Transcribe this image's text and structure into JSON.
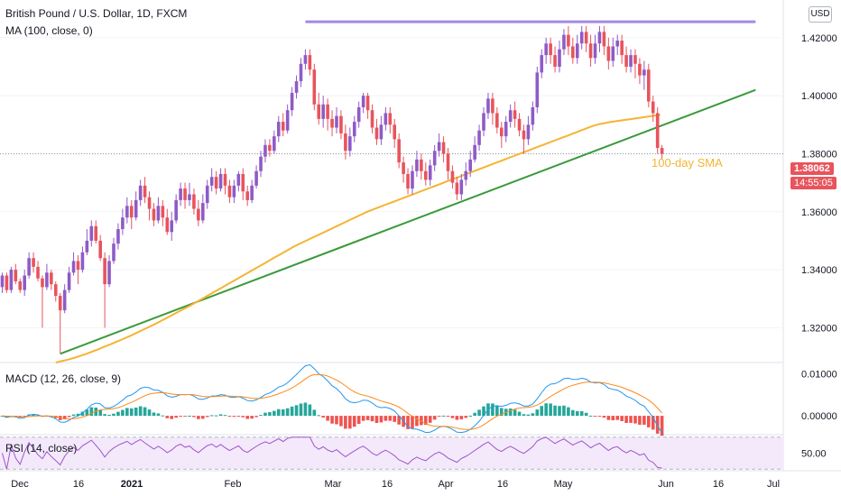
{
  "header": {
    "title": "British Pound / U.S. Dollar, 1D, FXCM",
    "ma_label": "MA (100, close, 0)",
    "currency": "USD"
  },
  "price_tag": {
    "value": "1.38062",
    "time": "14:55:05"
  },
  "annotation": "100-day SMA",
  "macd_label": "MACD (12, 26, close, 9)",
  "rsi_label": "RSI (14, close)",
  "colors": {
    "up": "#8e5bc7",
    "down": "#e8545c",
    "ma": "#f5b433",
    "trend": "#3a9a3a",
    "resistance": "#a48ae0",
    "macd": "#2196f3",
    "signal": "#ff8a1a",
    "hist_pos": "#26a69a",
    "hist_neg": "#ef5350",
    "rsi": "#a154c9"
  },
  "chart_data": [
    {
      "type": "candlestick",
      "name": "main",
      "y_ticks": [
        "1.42000",
        "1.40000",
        "1.38000",
        "1.36000",
        "1.34000",
        "1.32000"
      ],
      "y_tick_values": [
        1.42,
        1.4,
        1.38,
        1.36,
        1.34,
        1.32
      ],
      "ylim": [
        1.308,
        1.433
      ],
      "x_tick_labels": [
        "Dec",
        "16",
        "2021",
        "Feb",
        "Mar",
        "16",
        "Apr",
        "16",
        "May",
        "Jun",
        "16",
        "Jul"
      ],
      "candles": [
        [
          1.334,
          1.338,
          1.332,
          1.339
        ],
        [
          1.338,
          1.333,
          1.332,
          1.339
        ],
        [
          1.333,
          1.34,
          1.332,
          1.341
        ],
        [
          1.34,
          1.336,
          1.335,
          1.342
        ],
        [
          1.336,
          1.333,
          1.332,
          1.337
        ],
        [
          1.333,
          1.338,
          1.331,
          1.34
        ],
        [
          1.338,
          1.344,
          1.337,
          1.346
        ],
        [
          1.344,
          1.341,
          1.339,
          1.346
        ],
        [
          1.341,
          1.337,
          1.336,
          1.343
        ],
        [
          1.337,
          1.334,
          1.32,
          1.338
        ],
        [
          1.334,
          1.339,
          1.333,
          1.342
        ],
        [
          1.339,
          1.335,
          1.333,
          1.34
        ],
        [
          1.335,
          1.331,
          1.329,
          1.336
        ],
        [
          1.331,
          1.326,
          1.311,
          1.332
        ],
        [
          1.326,
          1.333,
          1.325,
          1.335
        ],
        [
          1.333,
          1.339,
          1.332,
          1.341
        ],
        [
          1.339,
          1.343,
          1.338,
          1.346
        ],
        [
          1.343,
          1.34,
          1.335,
          1.345
        ],
        [
          1.34,
          1.346,
          1.339,
          1.348
        ],
        [
          1.346,
          1.35,
          1.345,
          1.354
        ],
        [
          1.35,
          1.355,
          1.348,
          1.357
        ],
        [
          1.355,
          1.35,
          1.349,
          1.357
        ],
        [
          1.35,
          1.344,
          1.343,
          1.352
        ],
        [
          1.344,
          1.335,
          1.32,
          1.346
        ],
        [
          1.335,
          1.343,
          1.334,
          1.345
        ],
        [
          1.343,
          1.349,
          1.342,
          1.351
        ],
        [
          1.349,
          1.354,
          1.347,
          1.356
        ],
        [
          1.354,
          1.358,
          1.352,
          1.361
        ],
        [
          1.358,
          1.362,
          1.356,
          1.365
        ],
        [
          1.362,
          1.358,
          1.354,
          1.364
        ],
        [
          1.358,
          1.364,
          1.357,
          1.367
        ],
        [
          1.364,
          1.369,
          1.362,
          1.371
        ],
        [
          1.369,
          1.365,
          1.363,
          1.372
        ],
        [
          1.365,
          1.361,
          1.357,
          1.367
        ],
        [
          1.361,
          1.357,
          1.355,
          1.363
        ],
        [
          1.357,
          1.362,
          1.356,
          1.365
        ],
        [
          1.362,
          1.358,
          1.355,
          1.364
        ],
        [
          1.358,
          1.353,
          1.352,
          1.361
        ],
        [
          1.353,
          1.357,
          1.35,
          1.36
        ],
        [
          1.357,
          1.364,
          1.356,
          1.366
        ],
        [
          1.364,
          1.368,
          1.362,
          1.37
        ],
        [
          1.368,
          1.364,
          1.361,
          1.37
        ],
        [
          1.364,
          1.366,
          1.362,
          1.37
        ],
        [
          1.366,
          1.361,
          1.359,
          1.368
        ],
        [
          1.361,
          1.357,
          1.355,
          1.364
        ],
        [
          1.357,
          1.363,
          1.356,
          1.366
        ],
        [
          1.363,
          1.369,
          1.361,
          1.371
        ],
        [
          1.369,
          1.372,
          1.367,
          1.375
        ],
        [
          1.372,
          1.368,
          1.366,
          1.374
        ],
        [
          1.368,
          1.373,
          1.367,
          1.375
        ],
        [
          1.373,
          1.369,
          1.366,
          1.375
        ],
        [
          1.369,
          1.365,
          1.363,
          1.371
        ],
        [
          1.365,
          1.369,
          1.363,
          1.371
        ],
        [
          1.369,
          1.373,
          1.367,
          1.374
        ],
        [
          1.373,
          1.367,
          1.364,
          1.375
        ],
        [
          1.367,
          1.364,
          1.362,
          1.369
        ],
        [
          1.364,
          1.369,
          1.363,
          1.371
        ],
        [
          1.369,
          1.374,
          1.368,
          1.376
        ],
        [
          1.374,
          1.379,
          1.372,
          1.381
        ],
        [
          1.379,
          1.383,
          1.377,
          1.385
        ],
        [
          1.383,
          1.381,
          1.379,
          1.385
        ],
        [
          1.381,
          1.386,
          1.38,
          1.388
        ],
        [
          1.386,
          1.391,
          1.384,
          1.393
        ],
        [
          1.391,
          1.388,
          1.386,
          1.394
        ],
        [
          1.388,
          1.395,
          1.387,
          1.397
        ],
        [
          1.395,
          1.401,
          1.393,
          1.403
        ],
        [
          1.401,
          1.405,
          1.399,
          1.407
        ],
        [
          1.405,
          1.411,
          1.403,
          1.413
        ],
        [
          1.411,
          1.414,
          1.409,
          1.416
        ],
        [
          1.414,
          1.409,
          1.407,
          1.416
        ],
        [
          1.409,
          1.397,
          1.395,
          1.411
        ],
        [
          1.397,
          1.392,
          1.39,
          1.401
        ],
        [
          1.392,
          1.397,
          1.389,
          1.4
        ],
        [
          1.397,
          1.392,
          1.388,
          1.399
        ],
        [
          1.392,
          1.389,
          1.386,
          1.395
        ],
        [
          1.389,
          1.393,
          1.387,
          1.396
        ],
        [
          1.393,
          1.387,
          1.385,
          1.395
        ],
        [
          1.387,
          1.381,
          1.378,
          1.39
        ],
        [
          1.381,
          1.386,
          1.379,
          1.389
        ],
        [
          1.386,
          1.391,
          1.384,
          1.393
        ],
        [
          1.391,
          1.396,
          1.389,
          1.398
        ],
        [
          1.396,
          1.4,
          1.394,
          1.401
        ],
        [
          1.4,
          1.395,
          1.392,
          1.401
        ],
        [
          1.395,
          1.389,
          1.387,
          1.397
        ],
        [
          1.389,
          1.385,
          1.383,
          1.392
        ],
        [
          1.385,
          1.39,
          1.383,
          1.393
        ],
        [
          1.39,
          1.394,
          1.388,
          1.396
        ],
        [
          1.394,
          1.39,
          1.387,
          1.396
        ],
        [
          1.39,
          1.385,
          1.382,
          1.392
        ],
        [
          1.385,
          1.377,
          1.375,
          1.387
        ],
        [
          1.377,
          1.373,
          1.37,
          1.379
        ],
        [
          1.373,
          1.368,
          1.366,
          1.375
        ],
        [
          1.368,
          1.374,
          1.366,
          1.376
        ],
        [
          1.374,
          1.378,
          1.372,
          1.381
        ],
        [
          1.378,
          1.374,
          1.371,
          1.38
        ],
        [
          1.374,
          1.371,
          1.369,
          1.377
        ],
        [
          1.371,
          1.376,
          1.369,
          1.378
        ],
        [
          1.376,
          1.381,
          1.374,
          1.383
        ],
        [
          1.381,
          1.384,
          1.379,
          1.387
        ],
        [
          1.384,
          1.38,
          1.377,
          1.386
        ],
        [
          1.38,
          1.374,
          1.371,
          1.382
        ],
        [
          1.374,
          1.37,
          1.368,
          1.376
        ],
        [
          1.37,
          1.366,
          1.364,
          1.372
        ],
        [
          1.366,
          1.371,
          1.364,
          1.373
        ],
        [
          1.371,
          1.374,
          1.369,
          1.377
        ],
        [
          1.374,
          1.378,
          1.372,
          1.381
        ],
        [
          1.378,
          1.383,
          1.377,
          1.386
        ],
        [
          1.383,
          1.388,
          1.381,
          1.39
        ],
        [
          1.388,
          1.394,
          1.386,
          1.396
        ],
        [
          1.394,
          1.399,
          1.392,
          1.401
        ],
        [
          1.399,
          1.394,
          1.39,
          1.401
        ],
        [
          1.394,
          1.389,
          1.387,
          1.396
        ],
        [
          1.389,
          1.386,
          1.382,
          1.391
        ],
        [
          1.386,
          1.391,
          1.384,
          1.393
        ],
        [
          1.391,
          1.395,
          1.389,
          1.397
        ],
        [
          1.395,
          1.392,
          1.389,
          1.398
        ],
        [
          1.392,
          1.388,
          1.386,
          1.394
        ],
        [
          1.388,
          1.385,
          1.38,
          1.39
        ],
        [
          1.385,
          1.39,
          1.383,
          1.393
        ],
        [
          1.39,
          1.396,
          1.388,
          1.398
        ],
        [
          1.396,
          1.408,
          1.394,
          1.41
        ],
        [
          1.408,
          1.414,
          1.406,
          1.416
        ],
        [
          1.414,
          1.418,
          1.411,
          1.42
        ],
        [
          1.418,
          1.414,
          1.411,
          1.42
        ],
        [
          1.414,
          1.41,
          1.408,
          1.417
        ],
        [
          1.41,
          1.416,
          1.408,
          1.419
        ],
        [
          1.416,
          1.421,
          1.414,
          1.423
        ],
        [
          1.421,
          1.417,
          1.414,
          1.424
        ],
        [
          1.417,
          1.413,
          1.411,
          1.42
        ],
        [
          1.413,
          1.418,
          1.411,
          1.421
        ],
        [
          1.418,
          1.422,
          1.416,
          1.424
        ],
        [
          1.422,
          1.418,
          1.415,
          1.424
        ],
        [
          1.418,
          1.413,
          1.41,
          1.421
        ],
        [
          1.413,
          1.418,
          1.411,
          1.421
        ],
        [
          1.418,
          1.422,
          1.415,
          1.424
        ],
        [
          1.422,
          1.417,
          1.414,
          1.424
        ],
        [
          1.417,
          1.412,
          1.409,
          1.42
        ],
        [
          1.412,
          1.417,
          1.41,
          1.42
        ],
        [
          1.417,
          1.419,
          1.414,
          1.421
        ],
        [
          1.419,
          1.414,
          1.411,
          1.421
        ],
        [
          1.414,
          1.41,
          1.408,
          1.417
        ],
        [
          1.41,
          1.414,
          1.408,
          1.416
        ],
        [
          1.414,
          1.411,
          1.406,
          1.416
        ],
        [
          1.411,
          1.407,
          1.404,
          1.413
        ],
        [
          1.407,
          1.409,
          1.402,
          1.412
        ],
        [
          1.409,
          1.398,
          1.396,
          1.411
        ],
        [
          1.398,
          1.394,
          1.391,
          1.4
        ],
        [
          1.394,
          1.382,
          1.38,
          1.396
        ],
        [
          1.382,
          1.38,
          1.378,
          1.383
        ]
      ],
      "sma_100": [
        1.308,
        1.3085,
        1.309,
        1.3096,
        1.3103,
        1.311,
        1.3118,
        1.3126,
        1.3135,
        1.3143,
        1.3152,
        1.3161,
        1.317,
        1.318,
        1.319,
        1.32,
        1.321,
        1.3221,
        1.3232,
        1.3243,
        1.3254,
        1.3265,
        1.3276,
        1.3288,
        1.33,
        1.3312,
        1.3324,
        1.3336,
        1.3348,
        1.336,
        1.3372,
        1.3384,
        1.3396,
        1.3408,
        1.342,
        1.3432,
        1.3444,
        1.3456,
        1.3468,
        1.348,
        1.349,
        1.35,
        1.351,
        1.352,
        1.353,
        1.354,
        1.355,
        1.356,
        1.357,
        1.358,
        1.359,
        1.36,
        1.3608,
        1.3616,
        1.3624,
        1.3632,
        1.364,
        1.3648,
        1.3656,
        1.3664,
        1.3672,
        1.368,
        1.3688,
        1.3696,
        1.3704,
        1.3712,
        1.372,
        1.3728,
        1.3736,
        1.3744,
        1.3752,
        1.376,
        1.3768,
        1.3776,
        1.3784,
        1.3792,
        1.38,
        1.3808,
        1.3816,
        1.3824,
        1.3832,
        1.384,
        1.3848,
        1.3856,
        1.3864,
        1.3872,
        1.388,
        1.3888,
        1.3896,
        1.3902,
        1.3906,
        1.391,
        1.3913,
        1.3916,
        1.3919,
        1.3922,
        1.3925,
        1.3928,
        1.3931,
        1.3934
      ],
      "sma_start_index": 12,
      "trendline": {
        "from": [
          13,
          1.311
        ],
        "to": [
          169,
          1.402
        ]
      },
      "resistance": {
        "from": [
          68,
          1.4255
        ],
        "to": [
          169,
          1.4255
        ]
      }
    },
    {
      "type": "bar+line",
      "name": "macd",
      "y_ticks": [
        "0.01000",
        "0.00000"
      ],
      "y_tick_values": [
        0.01,
        0.0
      ],
      "ylim": [
        -0.0045,
        0.0125
      ]
    },
    {
      "type": "line",
      "name": "rsi",
      "y_ticks": [
        "50.00"
      ],
      "y_tick_values": [
        50
      ],
      "ylim": [
        28,
        72
      ],
      "band": [
        30,
        70
      ]
    }
  ]
}
